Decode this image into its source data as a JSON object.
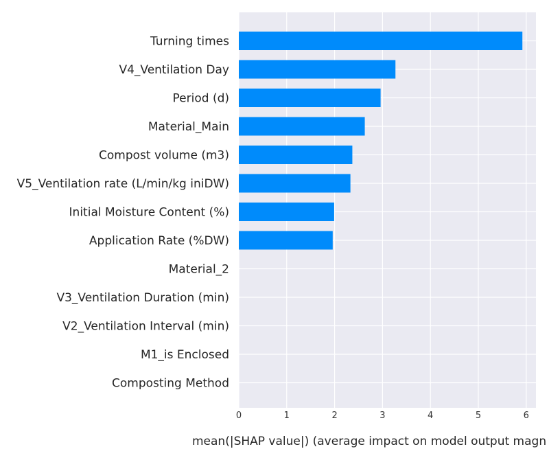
{
  "chart_data": {
    "type": "bar",
    "orientation": "horizontal",
    "categories": [
      "Turning times",
      "V4_Ventilation Day",
      "Period (d)",
      "Material_Main",
      "Compost volume (m3)",
      "V5_Ventilation rate (L/min/kg iniDW)",
      "Initial Moisture Content (%)",
      "Application Rate (%DW)",
      "Material_2",
      "V3_Ventilation Duration (min)",
      "V2_Ventilation Interval (min)",
      "M1_is Enclosed",
      "Composting Method"
    ],
    "values": [
      5.92,
      3.27,
      2.96,
      2.63,
      2.37,
      2.33,
      1.99,
      1.96,
      0,
      0,
      0,
      0,
      0
    ],
    "xticks": [
      "0",
      "1",
      "2",
      "3",
      "4",
      "5",
      "6"
    ],
    "xlim": [
      0,
      6.2
    ],
    "xlabel": "mean(|SHAP value|) (average impact on model output magn",
    "title": "",
    "ylabel": "",
    "grid": true,
    "bar_color": "#008bfb",
    "background_color": "#eaeaf2",
    "grid_color": "#ffffff"
  }
}
